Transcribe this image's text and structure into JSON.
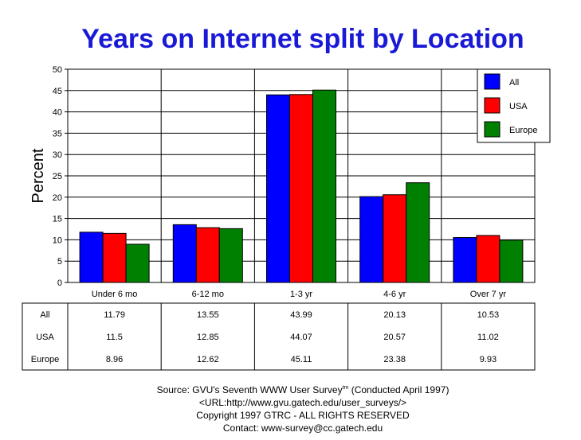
{
  "chart_data": {
    "type": "bar",
    "title": "Years on Internet split by Location",
    "ylabel": "Percent",
    "xlabel": "",
    "ylim": [
      0,
      50
    ],
    "yticks": [
      0,
      5,
      10,
      15,
      20,
      25,
      30,
      35,
      40,
      45,
      50
    ],
    "categories": [
      "Under 6 mo",
      "6-12 mo",
      "1-3 yr",
      "4-6 yr",
      "Over 7 yr"
    ],
    "series": [
      {
        "name": "All",
        "color": "#0000ff",
        "values": [
          "11.79",
          "13.55",
          "43.99",
          "20.13",
          "10.53"
        ]
      },
      {
        "name": "USA",
        "color": "#ff0000",
        "values": [
          "11.5",
          "12.85",
          "44.07",
          "20.57",
          "11.02"
        ]
      },
      {
        "name": "Europe",
        "color": "#008000",
        "values": [
          "8.96",
          "12.62",
          "45.11",
          "23.38",
          "9.93"
        ]
      }
    ],
    "grid": true,
    "legend_position": "top-right"
  },
  "source": {
    "line1_prefix": "Source: GVU's Seventh WWW User Survey",
    "line1_sup": "tm",
    "line1_suffix": " (Conducted April 1997)",
    "line2": "<URL:http://www.gvu.gatech.edu/user_surveys/>",
    "line3": "Copyright 1997 GTRC - ALL RIGHTS RESERVED",
    "line4": "Contact: www-survey@cc.gatech.edu"
  }
}
